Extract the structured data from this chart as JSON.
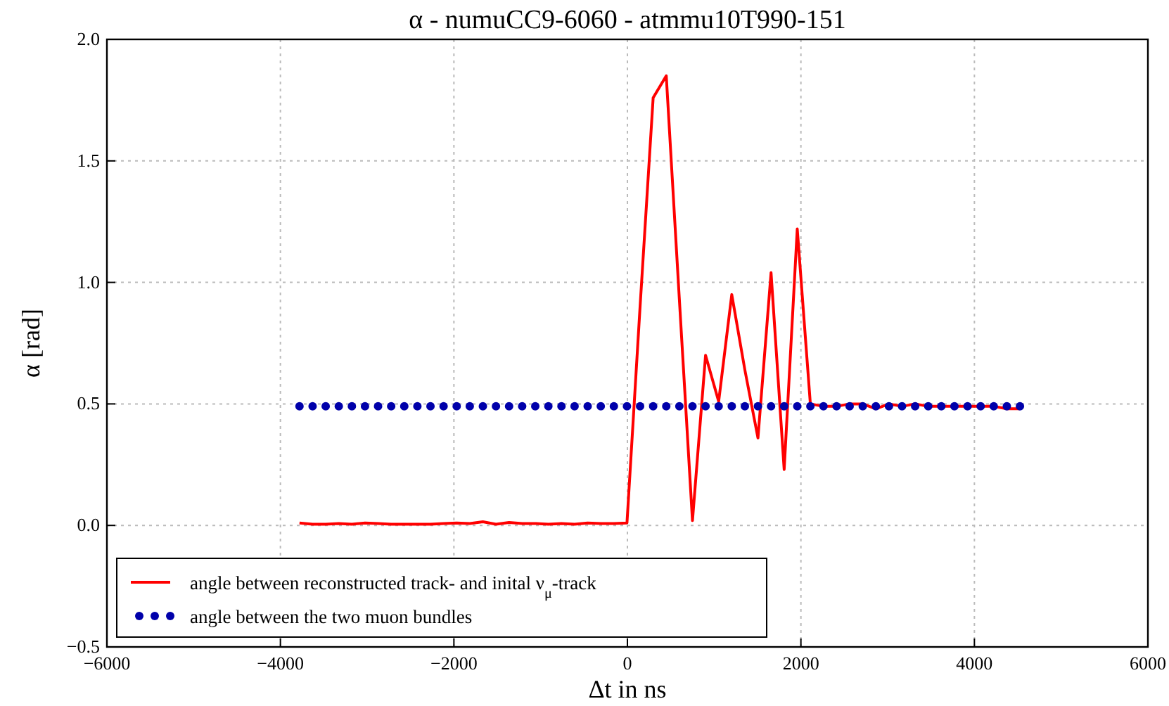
{
  "chart_data": {
    "type": "line",
    "title": "α - numuCC9-6060 - atmmu10T990-151",
    "xlabel": "Δt in ns",
    "ylabel": "α [rad]",
    "x": [
      -3780,
      -3629,
      -3478,
      -3327,
      -3176,
      -3025,
      -2874,
      -2723,
      -2572,
      -2421,
      -2270,
      -2119,
      -1968,
      -1817,
      -1666,
      -1515,
      -1364,
      -1213,
      -1062,
      -911,
      -760,
      -609,
      -458,
      -307,
      -156,
      -5,
      146,
      297,
      448,
      599,
      750,
      901,
      1052,
      1203,
      1354,
      1505,
      1656,
      1807,
      1958,
      2109,
      2260,
      2411,
      2562,
      2713,
      2864,
      3015,
      3166,
      3317,
      3468,
      3619,
      3770,
      3921,
      4072,
      4223,
      4374,
      4525
    ],
    "series": [
      {
        "name": "angle between reconstructed track- and inital ν$_{μ}$-track",
        "color": "#ff0000",
        "line_style": "solid",
        "marker": "none",
        "values": [
          0.01,
          0.005,
          0.005,
          0.008,
          0.005,
          0.01,
          0.008,
          0.005,
          0.005,
          0.005,
          0.005,
          0.008,
          0.01,
          0.008,
          0.015,
          0.005,
          0.012,
          0.008,
          0.008,
          0.005,
          0.008,
          0.005,
          0.01,
          0.008,
          0.008,
          0.01,
          0.9,
          1.76,
          1.85,
          0.93,
          0.02,
          0.7,
          0.51,
          0.95,
          0.64,
          0.36,
          1.04,
          0.23,
          1.22,
          0.5,
          0.49,
          0.49,
          0.5,
          0.5,
          0.48,
          0.5,
          0.49,
          0.5,
          0.49,
          0.49,
          0.49,
          0.49,
          0.49,
          0.49,
          0.48,
          0.48
        ]
      },
      {
        "name": "angle between the two muon bundles",
        "type": "scatter",
        "color": "#0000aa",
        "marker": "circle",
        "values": [
          0.49,
          0.49,
          0.49,
          0.49,
          0.49,
          0.49,
          0.49,
          0.49,
          0.49,
          0.49,
          0.49,
          0.49,
          0.49,
          0.49,
          0.49,
          0.49,
          0.49,
          0.49,
          0.49,
          0.49,
          0.49,
          0.49,
          0.49,
          0.49,
          0.49,
          0.49,
          0.49,
          0.49,
          0.49,
          0.49,
          0.49,
          0.49,
          0.49,
          0.49,
          0.49,
          0.49,
          0.49,
          0.49,
          0.49,
          0.49,
          0.49,
          0.49,
          0.49,
          0.49,
          0.49,
          0.49,
          0.49,
          0.49,
          0.49,
          0.49,
          0.49,
          0.49,
          0.49,
          0.49,
          0.49,
          0.49
        ]
      }
    ],
    "xlim": [
      -6000,
      6000
    ],
    "xticks": [
      {
        "value": -6000,
        "label": "−6000"
      },
      {
        "value": -4000,
        "label": "−4000"
      },
      {
        "value": -2000,
        "label": "−2000"
      },
      0,
      2000,
      4000,
      6000
    ],
    "ylim": [
      -0.5,
      2.0
    ],
    "yticks": [
      {
        "value": -0.5,
        "label": "−0.5"
      },
      {
        "value": 0,
        "label": "0.0"
      },
      {
        "value": 0.5,
        "label": "0.5"
      },
      {
        "value": 1,
        "label": "1.0"
      },
      {
        "value": 1.5,
        "label": "1.5"
      },
      {
        "value": 2,
        "label": "2.0"
      }
    ],
    "grid": true,
    "legend": "bottom left"
  }
}
